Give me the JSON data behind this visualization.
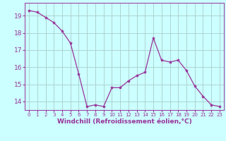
{
  "x": [
    0,
    1,
    2,
    3,
    4,
    5,
    6,
    7,
    8,
    9,
    10,
    11,
    12,
    13,
    14,
    15,
    16,
    17,
    18,
    19,
    20,
    21,
    22,
    23
  ],
  "y": [
    19.3,
    19.2,
    18.9,
    18.6,
    18.1,
    17.4,
    15.6,
    13.7,
    13.8,
    13.7,
    14.8,
    14.8,
    15.2,
    15.5,
    15.7,
    17.7,
    16.4,
    16.3,
    16.4,
    15.8,
    14.9,
    14.3,
    13.8,
    13.7
  ],
  "line_color": "#993399",
  "marker": "*",
  "marker_size": 3,
  "background_color": "#ccffff",
  "grid_color": "#aacccc",
  "xlabel": "Windchill (Refroidissement éolien,°C)",
  "ylim": [
    13.5,
    19.75
  ],
  "xlim": [
    -0.5,
    23.5
  ],
  "yticks": [
    14,
    15,
    16,
    17,
    18,
    19
  ],
  "xticks": [
    0,
    1,
    2,
    3,
    4,
    5,
    6,
    7,
    8,
    9,
    10,
    11,
    12,
    13,
    14,
    15,
    16,
    17,
    18,
    19,
    20,
    21,
    22,
    23
  ],
  "xlabel_fontsize": 6.5,
  "tick_fontsize": 6.5
}
